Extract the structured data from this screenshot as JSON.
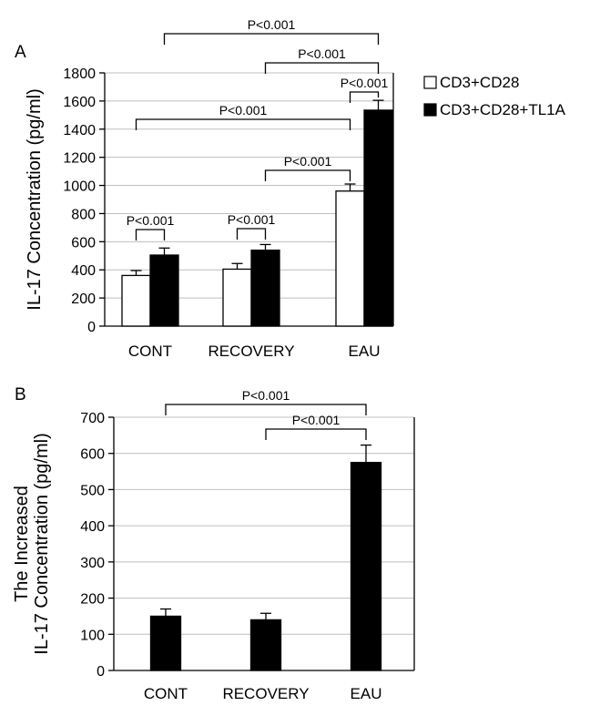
{
  "chart_data": [
    {
      "type": "bar",
      "panel_label": "A",
      "ylabel": "IL-17 Concentration (pg/ml)",
      "ylim": [
        0,
        1800
      ],
      "yticks": [
        0,
        200,
        400,
        600,
        800,
        1000,
        1200,
        1400,
        1600,
        1800
      ],
      "categories": [
        "CONT",
        "RECOVERY",
        "EAU"
      ],
      "grid": true,
      "legend_position": "top-right",
      "series": [
        {
          "name": "CD3+CD28",
          "color": "#ffffff",
          "values": [
            360,
            405,
            960
          ],
          "errors": [
            35,
            40,
            50
          ]
        },
        {
          "name": "CD3+CD28+TL1A",
          "color": "#000000",
          "values": [
            505,
            540,
            1535
          ],
          "errors": [
            50,
            40,
            70
          ]
        }
      ],
      "annotations": [
        {
          "text": "P<0.001",
          "from": [
            0,
            0
          ],
          "to": [
            0,
            1
          ]
        },
        {
          "text": "P<0.001",
          "from": [
            1,
            0
          ],
          "to": [
            1,
            1
          ]
        },
        {
          "text": "P<0.001",
          "from": [
            2,
            0
          ],
          "to": [
            2,
            1
          ]
        },
        {
          "text": "P<0.001",
          "from": [
            1,
            1
          ],
          "to": [
            2,
            0
          ]
        },
        {
          "text": "P<0.001",
          "from": [
            0,
            0
          ],
          "to": [
            2,
            0
          ]
        },
        {
          "text": "P<0.001",
          "from": [
            1,
            1
          ],
          "to": [
            2,
            1
          ]
        },
        {
          "text": "P<0.001",
          "from": [
            0,
            1
          ],
          "to": [
            2,
            1
          ]
        }
      ]
    },
    {
      "type": "bar",
      "panel_label": "B",
      "ylabel": [
        "The Increased",
        "IL-17 Concentration (pg/ml)"
      ],
      "ylim": [
        0,
        700
      ],
      "yticks": [
        0,
        100,
        200,
        300,
        400,
        500,
        600,
        700
      ],
      "categories": [
        "CONT",
        "RECOVERY",
        "EAU"
      ],
      "grid": true,
      "series": [
        {
          "color": "#000000",
          "values": [
            150,
            140,
            575
          ],
          "errors": [
            20,
            18,
            48
          ]
        }
      ],
      "annotations": [
        {
          "text": "P<0.001",
          "from": 0,
          "to": 2
        },
        {
          "text": "P<0.001",
          "from": 1,
          "to": 2
        }
      ]
    }
  ]
}
